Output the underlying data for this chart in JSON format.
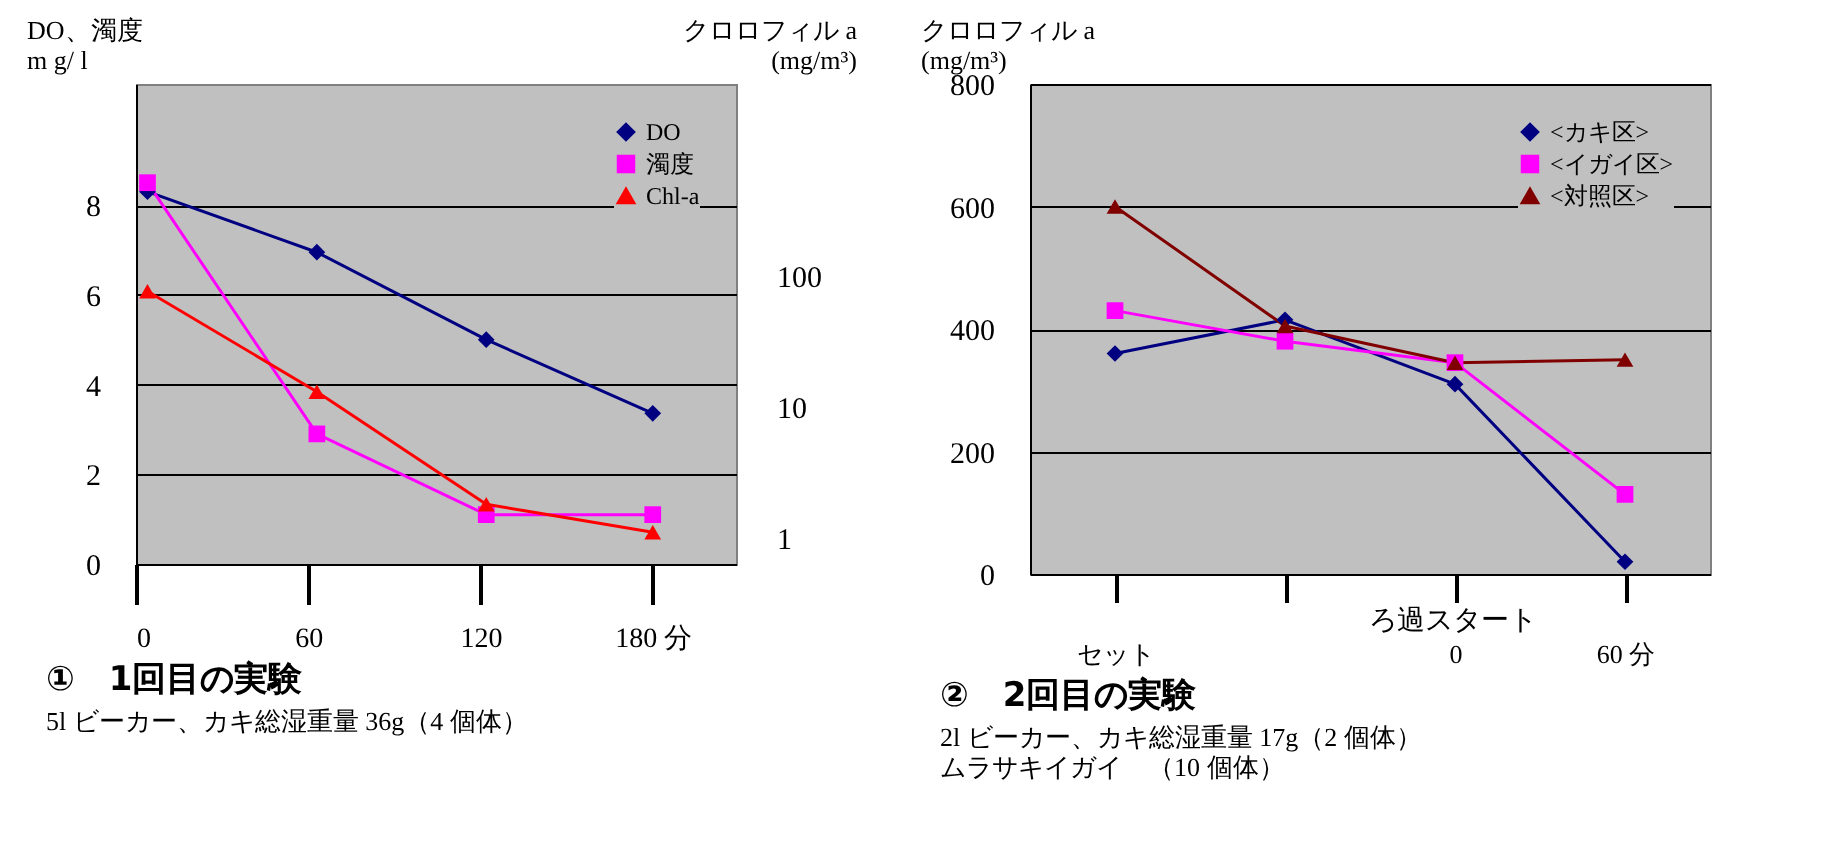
{
  "chart_data": [
    {
      "type": "line",
      "title": "①　1回目の実験",
      "ylabel": "DO、濁度\nm g/ l",
      "y2label": "クロロフィル a\n(mg/m³)",
      "x": [
        4,
        63,
        122,
        180
      ],
      "xlim": [
        0,
        209
      ],
      "xticks": [
        0,
        60,
        120,
        {
          "value": 180,
          "label": "180 分"
        }
      ],
      "ylim": [
        0,
        10.7
      ],
      "yticks": [
        0,
        2,
        4,
        6,
        8
      ],
      "y2lim": [
        0.63,
        2900
      ],
      "y2ticks": [
        1,
        10,
        100
      ],
      "log": "y2",
      "grid": "y",
      "legend": "top right",
      "series": [
        {
          "name": "DO",
          "color": "#000080",
          "marker": "diamond",
          "values": [
            8.3,
            6.95,
            5.0,
            3.36
          ]
        },
        {
          "name": "濁度",
          "color": "#ff00ff",
          "marker": "square",
          "values": [
            8.5,
            2.9,
            1.1,
            1.1
          ]
        },
        {
          "name": "Chl-a",
          "color": "#ff0000",
          "marker": "triangle",
          "axis": "y2",
          "values": [
            76,
            13,
            1.8,
            1.1
          ]
        }
      ],
      "annotations": [
        "5l ビーカー、カキ総湿重量 36g（4 個体）"
      ]
    },
    {
      "type": "line",
      "title": "②　2回目の実験",
      "ylabel": "クロロフィル a\n(mg/m³)",
      "categories": [
        "セット",
        null,
        "0",
        "60 分"
      ],
      "ylim": [
        0,
        800
      ],
      "yticks": [
        0,
        200,
        400,
        600,
        800
      ],
      "grid": "y",
      "legend": "top right",
      "series": [
        {
          "name": "<カキ区>",
          "color": "#000080",
          "marker": "diamond",
          "values": [
            360,
            415,
            310,
            20
          ]
        },
        {
          "name": "<イガイ区>",
          "color": "#ff00ff",
          "marker": "square",
          "values": [
            430,
            380,
            345,
            130
          ]
        },
        {
          "name": "<対照区>",
          "color": "#800000",
          "marker": "triangle",
          "values": [
            600,
            405,
            345,
            350
          ]
        }
      ],
      "xlabel": "ろ過スタート",
      "annotations": [
        "2l ビーカー、カキ総湿重量 17g（2 個体）",
        "ムラサキイガイ　（10 個体）"
      ]
    }
  ]
}
